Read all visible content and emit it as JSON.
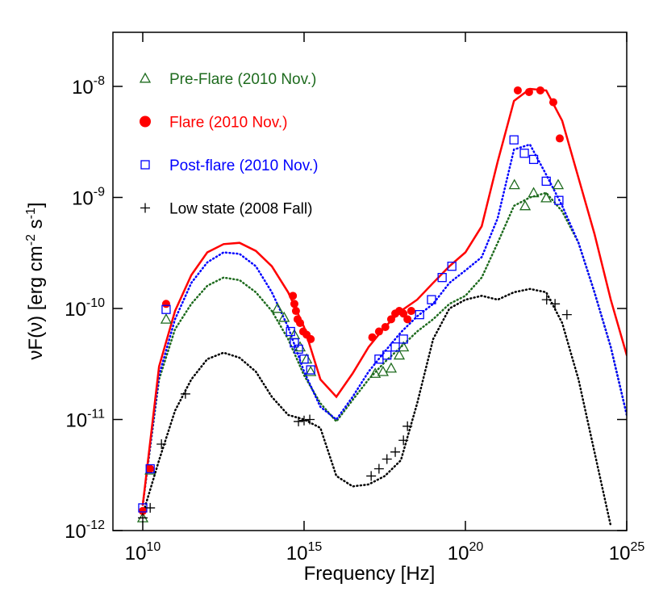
{
  "chart_data": {
    "type": "scatter",
    "x_label": "Frequency [Hz]",
    "y_label": [
      "νF(ν) [erg cm",
      "-2",
      " s",
      "-1",
      "]"
    ],
    "log_x": true,
    "log_y": true,
    "xlim": [
      1190000000.0,
      1e+25
    ],
    "ylim": [
      1e-12,
      3.07e-08
    ],
    "xticks": [
      {
        "value": 10000000000.0,
        "label": "10",
        "exponent": "10"
      },
      {
        "value": 1000000000000000.0,
        "label": "10",
        "exponent": "15"
      },
      {
        "value": 1e+20,
        "label": "10",
        "exponent": "20"
      },
      {
        "value": 1e+25,
        "label": "10",
        "exponent": "25"
      }
    ],
    "yticks": [
      {
        "value": 1e-12,
        "label": "10",
        "exponent": "-12"
      },
      {
        "value": 1e-11,
        "label": "10",
        "exponent": "-11"
      },
      {
        "value": 1e-10,
        "label": "10",
        "exponent": "-10"
      },
      {
        "value": 1e-09,
        "label": "10",
        "exponent": "-9"
      },
      {
        "value": 1e-08,
        "label": "10",
        "exponent": "-8"
      }
    ],
    "legend": "upper left",
    "series": [
      {
        "name": "Pre-Flare (2010 Nov.)",
        "color": "#1e6b1e",
        "marker": "triangle",
        "x": [
          10000000000.0,
          17000000000.0,
          53000000000.0,
          150000000000000.0,
          240000000000000.0,
          500000000000000.0,
          750000000000000.0,
          1200000000000000.0,
          1600000000000000.0,
          1.6e+17,
          2.8e+17,
          5e+17,
          8.9e+17,
          1.2e+18,
          3.3e+21,
          7.1e+21,
          1.3e+22,
          3.2e+22,
          7.5e+22
        ],
        "values": [
          1.3e-12,
          3.5e-12,
          8e-11,
          1e-10,
          8.3e-11,
          5.8e-11,
          4.5e-11,
          3.5e-11,
          2.7e-11,
          2.6e-11,
          2.7e-11,
          2.9e-11,
          3.8e-11,
          4.5e-11,
          1.3e-09,
          8.4e-10,
          1.1e-09,
          9.9e-10,
          1.3e-09
        ]
      },
      {
        "name": "Flare (2010 Nov.)",
        "color": "#ff0000",
        "marker": "circle",
        "x": [
          10000000000.0,
          17000000000.0,
          53000000000.0,
          450000000000000.0,
          500000000000000.0,
          560000000000000.0,
          630000000000000.0,
          750000000000000.0,
          940000000000000.0,
          1200000000000000.0,
          1600000000000000.0,
          1.3e+17,
          2.1e+17,
          3.3e+17,
          5e+17,
          6.7e+17,
          8.9e+17,
          1.2e+18,
          1.6e+18,
          2.1e+18,
          4.2e+21,
          9.4e+21,
          2.1e+22,
          5.3e+22,
          8.4e+22
        ],
        "values": [
          1.5e-12,
          3.6e-12,
          1.1e-10,
          1.3e-10,
          1.1e-10,
          9.5e-11,
          8e-11,
          7.4e-11,
          6.2e-11,
          5.8e-11,
          5.3e-11,
          5.5e-11,
          6.2e-11,
          6.8e-11,
          8e-11,
          9e-11,
          9.5e-11,
          9e-11,
          8e-11,
          9.5e-11,
          9.2e-09,
          8.9e-09,
          9.2e-09,
          7.2e-09,
          3.4e-09
        ]
      },
      {
        "name": "Post-flare (2010 Nov.)",
        "color": "#0000ff",
        "marker": "square",
        "x": [
          10000000000.0,
          17000000000.0,
          53000000000.0,
          380000000000000.0,
          500000000000000.0,
          670000000000000.0,
          1000000000000000.0,
          1600000000000000.0,
          2.1e+17,
          3.7e+17,
          6.7e+17,
          1.2e+18,
          3.8e+18,
          8.9e+18,
          1.9e+19,
          3.8e+19,
          3.2e+21,
          6.7e+21,
          1.3e+22,
          3.2e+22,
          7.9e+22
        ],
        "values": [
          1.6e-12,
          3.6e-12,
          9.8e-11,
          6.2e-11,
          4.9e-11,
          4.3e-11,
          3.5e-11,
          2.8e-11,
          3.5e-11,
          3.8e-11,
          4.5e-11,
          5.3e-11,
          8.8e-11,
          1.2e-10,
          1.9e-10,
          2.4e-10,
          3.3e-09,
          2.5e-09,
          2.2e-09,
          1.4e-09,
          9.4e-10
        ]
      },
      {
        "name": "Low state (2008 Fall)",
        "color": "#000000",
        "marker": "plus",
        "x": [
          10000000000.0,
          17000000000.0,
          38000000000.0,
          210000000000.0,
          670000000000000.0,
          1000000000000000.0,
          1500000000000000.0,
          1.2e+17,
          2.1e+17,
          3.7e+17,
          6.7e+17,
          1.2e+18,
          1.6e+18,
          3.3e+22,
          6e+22,
          1.4e+23
        ],
        "values": [
          1.3e-12,
          1.6e-12,
          6e-12,
          1.7e-11,
          9.6e-12,
          9.8e-12,
          1e-11,
          3.1e-12,
          3.6e-12,
          4.4e-12,
          5.1e-12,
          6.5e-12,
          8.7e-12,
          1.2e-10,
          1.1e-10,
          8.8e-11
        ]
      }
    ],
    "models": {
      "x": [
        10000000000.0,
        32000000000.0,
        100000000000.0,
        320000000000.0,
        1000000000000.0,
        3200000000000.0,
        10000000000000.0,
        32000000000000.0,
        100000000000000.0,
        320000000000000.0,
        1000000000000000.0,
        3200000000000000.0,
        1e+16,
        3.2e+16,
        1e+17,
        3.2e+17,
        1e+18,
        3.2e+18,
        1e+19,
        3.2e+19,
        1e+20,
        3.2e+20,
        1e+21,
        3.2e+21,
        1e+22,
        3.2e+22,
        1e+23,
        3.2e+23,
        1e+24,
        3.2e+24,
        1e+25
      ],
      "lines": [
        {
          "color": "#1e6b1e",
          "style": "dotted",
          "values": [
            1.7e-12,
            2.3e-11,
            6.5e-11,
            1.1e-10,
            1.6e-10,
            1.9e-10,
            1.8e-10,
            1.4e-10,
            9.5e-11,
            5.3e-11,
            2.5e-11,
            1.4e-11,
            9.6e-12,
            1.5e-11,
            2.3e-11,
            3.3e-11,
            4.5e-11,
            6.2e-11,
            8e-11,
            1.1e-10,
            1.3e-10,
            1.9e-10,
            3.9e-10,
            8.4e-10,
            1e-09,
            1.1e-09,
            7.5e-10,
            3.9e-10,
            1.4e-10,
            4.5e-11,
            1.1e-11
          ]
        },
        {
          "color": "#0000ff",
          "style": "dotted",
          "values": [
            1.7e-12,
            2.5e-11,
            8e-11,
            1.7e-10,
            2.6e-10,
            3.2e-10,
            3.1e-10,
            2.4e-10,
            1.4e-10,
            6.8e-11,
            2.7e-11,
            1.3e-11,
            1e-11,
            1.6e-11,
            2.7e-11,
            4.1e-11,
            6.1e-11,
            8.5e-11,
            1.1e-10,
            1.7e-10,
            2.2e-10,
            2.9e-10,
            6.5e-10,
            2.7e-09,
            3e-09,
            1.6e-09,
            8.4e-10,
            3.9e-10,
            1.4e-10,
            4.5e-11,
            1.1e-11
          ]
        },
        {
          "color": "#000000",
          "style": "dotted",
          "values": [
            1.4e-12,
            4.3e-12,
            1.2e-11,
            2.3e-11,
            3.5e-11,
            4e-11,
            3.6e-11,
            2.7e-11,
            1.6e-11,
            1.1e-11,
            1e-11,
            8.4e-12,
            3.1e-12,
            2.5e-12,
            2.6e-12,
            3.1e-12,
            4.3e-12,
            1.4e-11,
            5.3e-11,
            1e-10,
            1.2e-10,
            1.3e-10,
            1.2e-10,
            1.4e-10,
            1.5e-10,
            1.4e-10,
            7.4e-11,
            2.3e-11,
            5.1e-12,
            1.1e-12,
            null
          ]
        },
        {
          "color": "#ff0000",
          "style": "solid",
          "values": [
            1.7e-12,
            3e-11,
            9.5e-11,
            2e-10,
            3.2e-10,
            3.8e-10,
            3.9e-10,
            3.3e-10,
            2.4e-10,
            1.4e-10,
            6.8e-11,
            2.3e-11,
            1.6e-11,
            2.6e-11,
            4.5e-11,
            6.8e-11,
            9.5e-11,
            1.2e-10,
            1.7e-10,
            2.4e-10,
            3.2e-10,
            5.5e-10,
            2.1e-09,
            7.4e-09,
            9.5e-09,
            9.2e-09,
            4.9e-09,
            1.5e-09,
            4.7e-10,
            1.2e-10,
            3.8e-11
          ]
        }
      ]
    }
  }
}
